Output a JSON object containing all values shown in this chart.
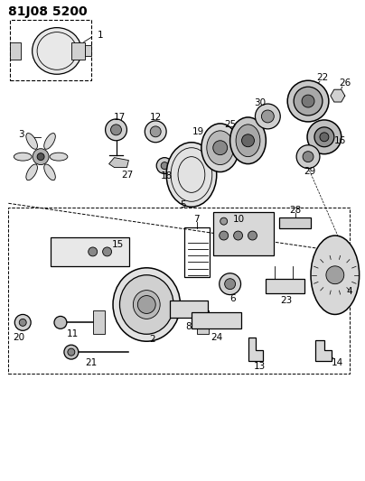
{
  "title": "81J08 5200",
  "bg_color": "#ffffff",
  "line_color": "#000000",
  "title_fontsize": 10,
  "label_fontsize": 7.5,
  "fig_width": 4.04,
  "fig_height": 5.33,
  "dpi": 100
}
